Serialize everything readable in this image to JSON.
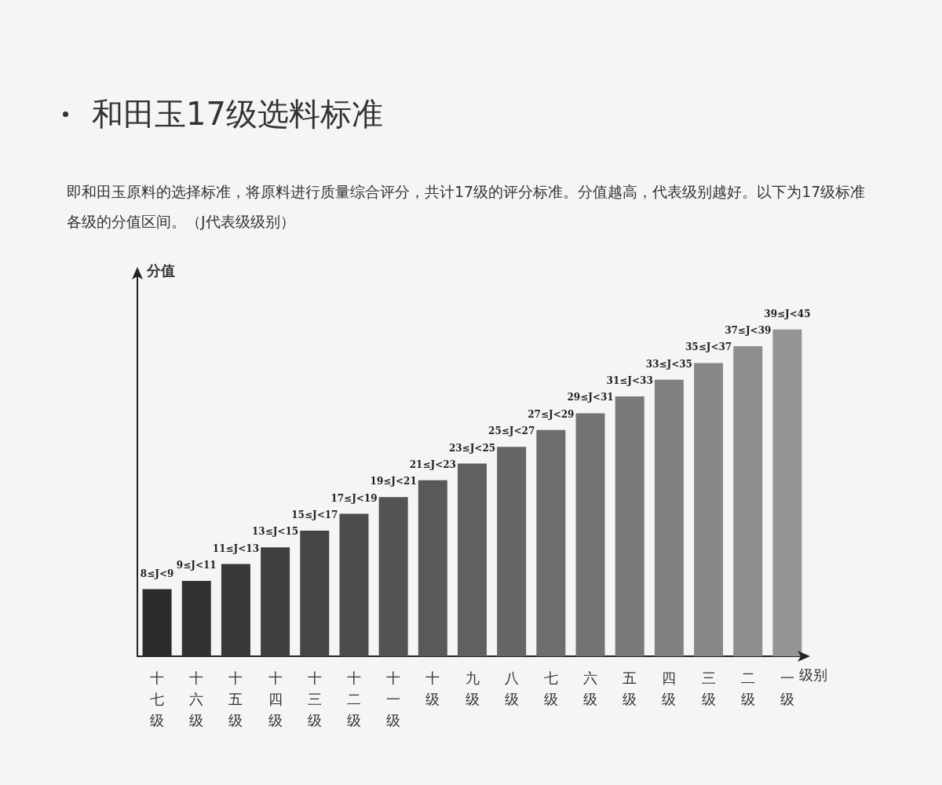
{
  "chart_data": {
    "type": "bar",
    "title": "和田玉17级选料标准",
    "subtitle": "即和田玉原料的选择标准，将原料进行质量综合评分，共计17级的评分标准。分值越高，代表级别越好。以下为17级标准各级的分值区间。（J代表级级别）",
    "xlabel": "级别",
    "ylabel": "分值",
    "ylim": [
      0,
      46
    ],
    "tick_labels": "x",
    "categories": [
      "十七级",
      "十六级",
      "十五级",
      "十四级",
      "十三级",
      "十二级",
      "十一级",
      "十级",
      "九级",
      "八级",
      "七级",
      "六级",
      "五级",
      "四级",
      "三级",
      "二级",
      "一级"
    ],
    "values": [
      8,
      9,
      11,
      13,
      15,
      17,
      19,
      21,
      23,
      25,
      27,
      29,
      31,
      33,
      35,
      37,
      39
    ],
    "value_labels": [
      "8≤J<9",
      "9≤J<11",
      "11≤J<13",
      "13≤J<15",
      "15≤J<17",
      "17≤J<19",
      "19≤J<21",
      "21≤J<23",
      "23≤J<25",
      "25≤J<27",
      "27≤J<29",
      "29≤J<31",
      "31≤J<33",
      "33≤J<35",
      "35≤J<37",
      "37≤J<39",
      "39≤J<45"
    ],
    "colors": [
      "#2b2b2b",
      "#323232",
      "#383838",
      "#3f3f3f",
      "#454545",
      "#4c4c4c",
      "#535353",
      "#595959",
      "#606060",
      "#666666",
      "#6d6d6d",
      "#737373",
      "#7a7a7a",
      "#818181",
      "#878787",
      "#8e8e8e",
      "#959595"
    ],
    "grid": false
  }
}
